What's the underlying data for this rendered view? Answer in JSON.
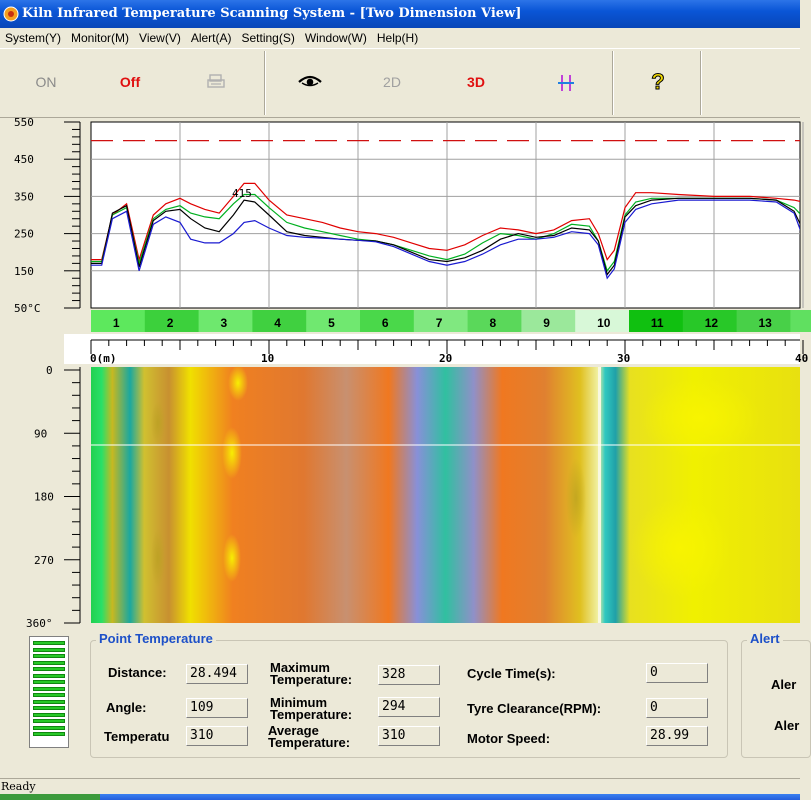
{
  "window": {
    "title": "Kiln Infrared Temperature Scanning System - [Two Dimension View]"
  },
  "menu": [
    "System(Y)",
    "Monitor(M)",
    "View(V)",
    "Alert(A)",
    "Setting(S)",
    "Window(W)",
    "Help(H)"
  ],
  "toolbar": {
    "on_label": "ON",
    "off_label": "Off",
    "btn_2d_label": "2D",
    "btn_3d_label": "3D",
    "help_label": "?"
  },
  "colors": {
    "off": "#e01010",
    "on": "#8a8a8a",
    "btn_3d": "#e01010",
    "btn_2d": "#a0a0a0",
    "accent": "#1d50c8"
  },
  "chart_data": {
    "type": "line",
    "x_unit": "m",
    "y_ticks": [
      "550",
      "450",
      "350",
      "250",
      "150",
      "50°C"
    ],
    "ylim": [
      50,
      550
    ],
    "xlim": [
      0,
      40
    ],
    "threshold": 500,
    "peak_label": "415",
    "series": [
      {
        "color": "#e00000",
        "x": [
          0,
          0.6,
          1.2,
          2,
          2.7,
          3.5,
          4.2,
          5,
          5.6,
          6.4,
          7.2,
          8,
          8.6,
          9.2,
          10,
          11,
          12,
          13,
          14,
          15,
          16,
          17,
          18,
          19,
          20,
          21,
          22,
          23,
          24,
          25,
          26,
          27,
          28,
          28.5,
          29,
          29.4,
          30,
          30.6,
          31.5,
          33,
          35,
          37,
          38.5,
          39.5,
          40
        ],
        "y": [
          180,
          180,
          300,
          330,
          180,
          300,
          330,
          345,
          330,
          315,
          305,
          350,
          385,
          385,
          340,
          300,
          290,
          280,
          265,
          255,
          250,
          240,
          225,
          210,
          205,
          220,
          245,
          265,
          260,
          250,
          260,
          285,
          290,
          250,
          180,
          205,
          320,
          360,
          360,
          355,
          350,
          350,
          345,
          340,
          335
        ]
      },
      {
        "color": "#00b020",
        "x": [
          0,
          0.6,
          1.2,
          2,
          2.7,
          3.5,
          4.2,
          5,
          5.6,
          6.4,
          7.2,
          8,
          8.6,
          9.2,
          10,
          11,
          12,
          13,
          14,
          15,
          16,
          17,
          18,
          19,
          20,
          21,
          22,
          23,
          24,
          25,
          26,
          27,
          28,
          28.5,
          29,
          29.4,
          30,
          30.6,
          31.5,
          33,
          35,
          37,
          38.5,
          39.5,
          40
        ],
        "y": [
          175,
          175,
          300,
          320,
          170,
          290,
          315,
          325,
          305,
          295,
          290,
          330,
          355,
          355,
          320,
          280,
          265,
          255,
          245,
          235,
          230,
          220,
          205,
          190,
          180,
          195,
          225,
          250,
          245,
          235,
          250,
          275,
          270,
          230,
          150,
          175,
          300,
          335,
          345,
          345,
          345,
          345,
          340,
          320,
          295
        ]
      },
      {
        "color": "#000000",
        "x": [
          0,
          0.6,
          1.2,
          2,
          2.7,
          3.5,
          4.2,
          5,
          5.6,
          6.4,
          7.2,
          8,
          8.6,
          9.2,
          10,
          11,
          12,
          13,
          14,
          15,
          16,
          17,
          18,
          19,
          20,
          21,
          22,
          23,
          24,
          25,
          26,
          27,
          28,
          28.5,
          29,
          29.4,
          30,
          30.6,
          31.5,
          33,
          35,
          37,
          38.5,
          39.5,
          40
        ],
        "y": [
          170,
          170,
          305,
          325,
          160,
          285,
          310,
          315,
          290,
          265,
          255,
          300,
          340,
          335,
          300,
          255,
          245,
          240,
          235,
          232,
          230,
          220,
          200,
          180,
          175,
          185,
          205,
          235,
          250,
          240,
          245,
          265,
          260,
          230,
          140,
          165,
          295,
          325,
          340,
          345,
          345,
          345,
          340,
          310,
          260
        ]
      },
      {
        "color": "#1a1ad0",
        "x": [
          0,
          0.6,
          1.2,
          2,
          2.7,
          3.5,
          4.2,
          5,
          5.6,
          6.4,
          7.2,
          8,
          8.6,
          9.2,
          10,
          11,
          12,
          13,
          14,
          15,
          16,
          17,
          18,
          19,
          20,
          21,
          22,
          23,
          24,
          25,
          26,
          27,
          28,
          28.5,
          29,
          29.4,
          30,
          30.6,
          31.5,
          33,
          35,
          37,
          38.5,
          39.5,
          40
        ],
        "y": [
          165,
          165,
          290,
          310,
          150,
          275,
          295,
          280,
          235,
          225,
          225,
          250,
          280,
          285,
          265,
          245,
          240,
          238,
          235,
          232,
          228,
          215,
          195,
          175,
          165,
          175,
          195,
          220,
          235,
          235,
          240,
          255,
          250,
          220,
          130,
          155,
          280,
          315,
          330,
          340,
          340,
          340,
          335,
          305,
          240
        ]
      }
    ]
  },
  "zones": [
    "1",
    "2",
    "3",
    "4",
    "5",
    "6",
    "7",
    "8",
    "9",
    "10",
    "11",
    "12",
    "13"
  ],
  "zone_colors": [
    "#5de85d",
    "#3cd03c",
    "#6ee86e",
    "#40d040",
    "#70e870",
    "#4ad84a",
    "#80e880",
    "#5ad85a",
    "#9be89b",
    "#d8f8d8",
    "#10c010",
    "#28c828",
    "#48d048"
  ],
  "distance_axis": {
    "ticks": [
      "0(m)",
      "10",
      "20",
      "30",
      "40"
    ]
  },
  "angle_axis": {
    "ticks": [
      "0",
      "90",
      "180",
      "270",
      "360°"
    ]
  },
  "point_temperature": {
    "title": "Point Temperature",
    "distance_label": "Distance:",
    "distance_value": "28.494",
    "angle_label": "Angle:",
    "angle_value": "109",
    "temperature_label": "Temperatu",
    "temperature_value": "310",
    "max_label": "Maximum Temperature:",
    "max_value": "328",
    "min_label": "Minimum Temperature:",
    "min_value": "294",
    "avg_label": "Average Temperature:",
    "avg_value": "310",
    "cycle_label": "Cycle Time(s):",
    "cycle_value": "0",
    "tyre_label": "Tyre Clearance(RPM):",
    "tyre_value": "0",
    "motor_label": "Motor Speed:",
    "motor_value": "28.99"
  },
  "alert": {
    "title": "Alert",
    "row1": "Aler",
    "row2": "Aler"
  },
  "status": {
    "text": "Ready"
  }
}
